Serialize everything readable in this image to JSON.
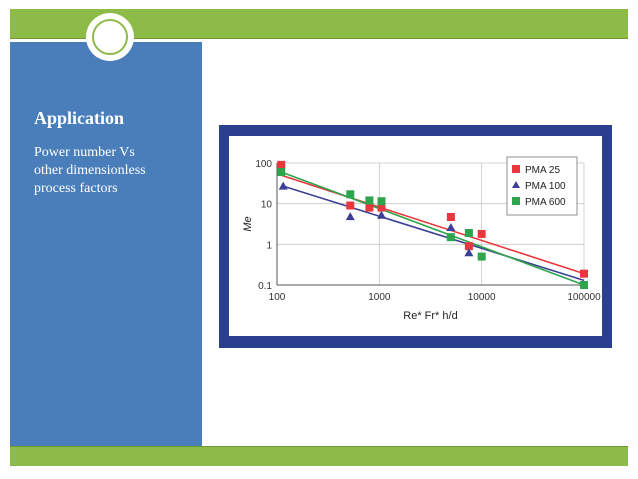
{
  "slide": {
    "title": "Application",
    "body": "Power number Vs\nother dimensionless\nprocess factors"
  },
  "colors": {
    "green_bar": "#8dbb48",
    "side_panel": "#4a7ebb",
    "chart_frame": "#2b3f8f",
    "pma25": "#e8373d",
    "pma100": "#3c3f96",
    "pma600": "#2ea44c"
  },
  "chart_data": {
    "type": "scatter",
    "xlabel": "Re* Fr* h/d",
    "ylabel": "Me",
    "xscale": "log",
    "yscale": "log",
    "xlim": [
      100,
      100000
    ],
    "ylim": [
      0.1,
      100
    ],
    "xticks": [
      100,
      1000,
      10000,
      100000
    ],
    "xtick_labels": [
      "100",
      "1000",
      "10000",
      "100000"
    ],
    "yticks": [
      0.1,
      1,
      10,
      100
    ],
    "ytick_labels": [
      "0.1",
      "1",
      "10",
      "100"
    ],
    "grid": true,
    "legend_position": "top-right",
    "series": [
      {
        "name": "PMA 25",
        "marker": "square",
        "color": "#e8373d",
        "x": [
          110,
          520,
          800,
          1050,
          5000,
          7500,
          10000,
          100000
        ],
        "y": [
          90,
          9,
          8,
          8,
          4.7,
          0.9,
          1.8,
          0.19
        ],
        "fit": [
          [
            110,
            50
          ],
          [
            100000,
            0.19
          ]
        ]
      },
      {
        "name": "PMA 100",
        "marker": "triangle",
        "color": "#3c3f96",
        "x": [
          115,
          520,
          1050,
          5000,
          7500
        ],
        "y": [
          27,
          4.8,
          5.2,
          2.6,
          0.62
        ],
        "fit": [
          [
            110,
            28
          ],
          [
            100000,
            0.13
          ]
        ]
      },
      {
        "name": "PMA 600",
        "marker": "square",
        "color": "#2ea44c",
        "x": [
          110,
          520,
          800,
          1050,
          5000,
          7500,
          10000,
          100000
        ],
        "y": [
          60,
          17,
          12,
          11.5,
          1.5,
          1.9,
          0.5,
          0.1
        ],
        "fit": [
          [
            110,
            60
          ],
          [
            100000,
            0.1
          ]
        ]
      }
    ]
  }
}
